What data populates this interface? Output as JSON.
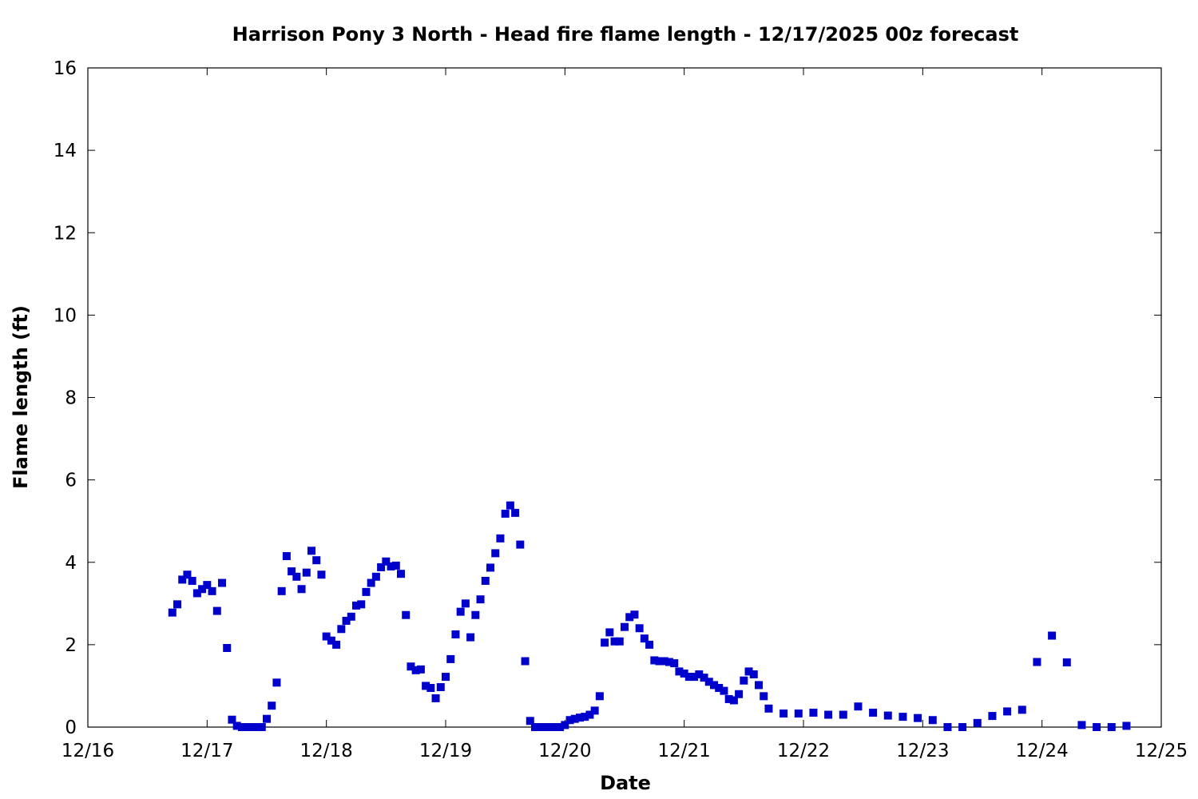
{
  "chart_data": {
    "type": "scatter",
    "title": "Harrison Pony 3 North - Head fire flame length - 12/17/2025 00z forecast",
    "xlabel": "Date",
    "ylabel": "Flame length (ft)",
    "x_ticks": [
      "12/16",
      "12/17",
      "12/18",
      "12/19",
      "12/20",
      "12/21",
      "12/22",
      "12/23",
      "12/24",
      "12/25"
    ],
    "y_ticks": [
      0,
      2,
      4,
      6,
      8,
      10,
      12,
      14,
      16
    ],
    "xlim": [
      "2025-12-16 00:00",
      "2025-12-25 00:00"
    ],
    "ylim": [
      0,
      16
    ],
    "grid": false,
    "marker": "square",
    "color": "#0000cc",
    "series": [
      {
        "points": [
          [
            "2025-12-16 17:00",
            2.78
          ],
          [
            "2025-12-16 18:00",
            2.98
          ],
          [
            "2025-12-16 19:00",
            3.58
          ],
          [
            "2025-12-16 20:00",
            3.7
          ],
          [
            "2025-12-16 21:00",
            3.55
          ],
          [
            "2025-12-16 22:00",
            3.25
          ],
          [
            "2025-12-16 23:00",
            3.35
          ],
          [
            "2025-12-17 00:00",
            3.45
          ],
          [
            "2025-12-17 01:00",
            3.3
          ],
          [
            "2025-12-17 02:00",
            2.82
          ],
          [
            "2025-12-17 03:00",
            3.5
          ],
          [
            "2025-12-17 04:00",
            1.92
          ],
          [
            "2025-12-17 05:00",
            0.18
          ],
          [
            "2025-12-17 06:00",
            0.03
          ],
          [
            "2025-12-17 07:00",
            0.0
          ],
          [
            "2025-12-17 08:00",
            0.0
          ],
          [
            "2025-12-17 09:00",
            0.0
          ],
          [
            "2025-12-17 10:00",
            0.0
          ],
          [
            "2025-12-17 11:00",
            0.0
          ],
          [
            "2025-12-17 12:00",
            0.2
          ],
          [
            "2025-12-17 13:00",
            0.52
          ],
          [
            "2025-12-17 14:00",
            1.08
          ],
          [
            "2025-12-17 15:00",
            3.3
          ],
          [
            "2025-12-17 16:00",
            4.15
          ],
          [
            "2025-12-17 17:00",
            3.78
          ],
          [
            "2025-12-17 18:00",
            3.65
          ],
          [
            "2025-12-17 19:00",
            3.35
          ],
          [
            "2025-12-17 20:00",
            3.75
          ],
          [
            "2025-12-17 21:00",
            4.28
          ],
          [
            "2025-12-17 22:00",
            4.05
          ],
          [
            "2025-12-17 23:00",
            3.7
          ],
          [
            "2025-12-18 00:00",
            2.2
          ],
          [
            "2025-12-18 01:00",
            2.1
          ],
          [
            "2025-12-18 02:00",
            2.0
          ],
          [
            "2025-12-18 03:00",
            2.38
          ],
          [
            "2025-12-18 04:00",
            2.58
          ],
          [
            "2025-12-18 05:00",
            2.68
          ],
          [
            "2025-12-18 06:00",
            2.95
          ],
          [
            "2025-12-18 07:00",
            2.98
          ],
          [
            "2025-12-18 08:00",
            3.28
          ],
          [
            "2025-12-18 09:00",
            3.5
          ],
          [
            "2025-12-18 10:00",
            3.65
          ],
          [
            "2025-12-18 11:00",
            3.88
          ],
          [
            "2025-12-18 12:00",
            4.02
          ],
          [
            "2025-12-18 13:00",
            3.9
          ],
          [
            "2025-12-18 14:00",
            3.92
          ],
          [
            "2025-12-18 15:00",
            3.72
          ],
          [
            "2025-12-18 16:00",
            2.72
          ],
          [
            "2025-12-18 17:00",
            1.47
          ],
          [
            "2025-12-18 18:00",
            1.38
          ],
          [
            "2025-12-18 19:00",
            1.4
          ],
          [
            "2025-12-18 20:00",
            1.0
          ],
          [
            "2025-12-18 21:00",
            0.95
          ],
          [
            "2025-12-18 22:00",
            0.7
          ],
          [
            "2025-12-18 23:00",
            0.97
          ],
          [
            "2025-12-19 00:00",
            1.22
          ],
          [
            "2025-12-19 01:00",
            1.65
          ],
          [
            "2025-12-19 02:00",
            2.25
          ],
          [
            "2025-12-19 03:00",
            2.8
          ],
          [
            "2025-12-19 04:00",
            3.0
          ],
          [
            "2025-12-19 05:00",
            2.18
          ],
          [
            "2025-12-19 06:00",
            2.72
          ],
          [
            "2025-12-19 07:00",
            3.1
          ],
          [
            "2025-12-19 08:00",
            3.55
          ],
          [
            "2025-12-19 09:00",
            3.87
          ],
          [
            "2025-12-19 10:00",
            4.22
          ],
          [
            "2025-12-19 11:00",
            4.58
          ],
          [
            "2025-12-19 12:00",
            5.18
          ],
          [
            "2025-12-19 13:00",
            5.38
          ],
          [
            "2025-12-19 14:00",
            5.2
          ],
          [
            "2025-12-19 15:00",
            4.43
          ],
          [
            "2025-12-19 16:00",
            1.6
          ],
          [
            "2025-12-19 17:00",
            0.15
          ],
          [
            "2025-12-19 18:00",
            0.0
          ],
          [
            "2025-12-19 19:00",
            0.0
          ],
          [
            "2025-12-19 20:00",
            0.0
          ],
          [
            "2025-12-19 21:00",
            0.0
          ],
          [
            "2025-12-19 22:00",
            0.0
          ],
          [
            "2025-12-19 23:00",
            0.0
          ],
          [
            "2025-12-20 00:00",
            0.05
          ],
          [
            "2025-12-20 01:00",
            0.17
          ],
          [
            "2025-12-20 02:00",
            0.2
          ],
          [
            "2025-12-20 03:00",
            0.23
          ],
          [
            "2025-12-20 04:00",
            0.25
          ],
          [
            "2025-12-20 05:00",
            0.3
          ],
          [
            "2025-12-20 06:00",
            0.4
          ],
          [
            "2025-12-20 07:00",
            0.75
          ],
          [
            "2025-12-20 08:00",
            2.05
          ],
          [
            "2025-12-20 09:00",
            2.3
          ],
          [
            "2025-12-20 10:00",
            2.08
          ],
          [
            "2025-12-20 11:00",
            2.08
          ],
          [
            "2025-12-20 12:00",
            2.43
          ],
          [
            "2025-12-20 13:00",
            2.67
          ],
          [
            "2025-12-20 14:00",
            2.73
          ],
          [
            "2025-12-20 15:00",
            2.4
          ],
          [
            "2025-12-20 16:00",
            2.15
          ],
          [
            "2025-12-20 17:00",
            2.0
          ],
          [
            "2025-12-20 18:00",
            1.62
          ],
          [
            "2025-12-20 19:00",
            1.6
          ],
          [
            "2025-12-20 20:00",
            1.6
          ],
          [
            "2025-12-20 21:00",
            1.58
          ],
          [
            "2025-12-20 22:00",
            1.55
          ],
          [
            "2025-12-20 23:00",
            1.35
          ],
          [
            "2025-12-21 00:00",
            1.3
          ],
          [
            "2025-12-21 01:00",
            1.22
          ],
          [
            "2025-12-21 02:00",
            1.22
          ],
          [
            "2025-12-21 03:00",
            1.28
          ],
          [
            "2025-12-21 04:00",
            1.2
          ],
          [
            "2025-12-21 05:00",
            1.1
          ],
          [
            "2025-12-21 06:00",
            1.02
          ],
          [
            "2025-12-21 07:00",
            0.95
          ],
          [
            "2025-12-21 08:00",
            0.88
          ],
          [
            "2025-12-21 09:00",
            0.68
          ],
          [
            "2025-12-21 10:00",
            0.65
          ],
          [
            "2025-12-21 11:00",
            0.8
          ],
          [
            "2025-12-21 12:00",
            1.13
          ],
          [
            "2025-12-21 13:00",
            1.35
          ],
          [
            "2025-12-21 14:00",
            1.28
          ],
          [
            "2025-12-21 15:00",
            1.02
          ],
          [
            "2025-12-21 16:00",
            0.75
          ],
          [
            "2025-12-21 17:00",
            0.45
          ],
          [
            "2025-12-21 20:00",
            0.33
          ],
          [
            "2025-12-21 23:00",
            0.33
          ],
          [
            "2025-12-22 02:00",
            0.35
          ],
          [
            "2025-12-22 05:00",
            0.3
          ],
          [
            "2025-12-22 08:00",
            0.3
          ],
          [
            "2025-12-22 11:00",
            0.5
          ],
          [
            "2025-12-22 14:00",
            0.35
          ],
          [
            "2025-12-22 17:00",
            0.28
          ],
          [
            "2025-12-22 20:00",
            0.25
          ],
          [
            "2025-12-22 23:00",
            0.22
          ],
          [
            "2025-12-23 02:00",
            0.17
          ],
          [
            "2025-12-23 05:00",
            0.0
          ],
          [
            "2025-12-23 08:00",
            0.0
          ],
          [
            "2025-12-23 11:00",
            0.1
          ],
          [
            "2025-12-23 14:00",
            0.27
          ],
          [
            "2025-12-23 17:00",
            0.38
          ],
          [
            "2025-12-23 20:00",
            0.42
          ],
          [
            "2025-12-23 23:00",
            1.58
          ],
          [
            "2025-12-24 02:00",
            2.22
          ],
          [
            "2025-12-24 05:00",
            1.57
          ],
          [
            "2025-12-24 08:00",
            0.05
          ],
          [
            "2025-12-24 11:00",
            0.0
          ],
          [
            "2025-12-24 14:00",
            0.0
          ],
          [
            "2025-12-24 17:00",
            0.03
          ]
        ]
      }
    ]
  }
}
